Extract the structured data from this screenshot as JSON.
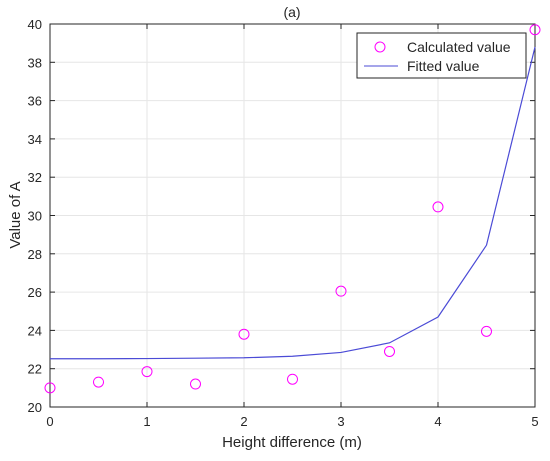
{
  "chart_data": {
    "type": "scatter",
    "title": "(a)",
    "xlabel": "Height difference (m)",
    "ylabel": "Value of A",
    "xlim": [
      0,
      5
    ],
    "ylim": [
      20,
      40
    ],
    "xticks": [
      0,
      1,
      2,
      3,
      4,
      5
    ],
    "yticks": [
      20,
      22,
      24,
      26,
      28,
      30,
      32,
      34,
      36,
      38,
      40
    ],
    "grid": true,
    "legend_position": "top-right",
    "series": [
      {
        "name": "Calculated value",
        "type": "scatter",
        "marker": "circle",
        "color": "#ff00ff",
        "x": [
          0,
          0.5,
          1,
          1.5,
          2,
          2.5,
          3,
          3.5,
          4,
          4.5,
          5
        ],
        "y": [
          21.0,
          21.3,
          21.85,
          21.2,
          23.8,
          21.45,
          26.05,
          22.9,
          30.45,
          23.95,
          39.7
        ]
      },
      {
        "name": "Fitted value",
        "type": "line",
        "color": "#4b4bd6",
        "x": [
          0,
          0.5,
          1,
          1.5,
          2,
          2.5,
          3,
          3.5,
          4,
          4.5,
          5
        ],
        "y": [
          22.52,
          22.52,
          22.53,
          22.55,
          22.57,
          22.65,
          22.85,
          23.35,
          24.7,
          28.45,
          38.8
        ]
      }
    ]
  }
}
